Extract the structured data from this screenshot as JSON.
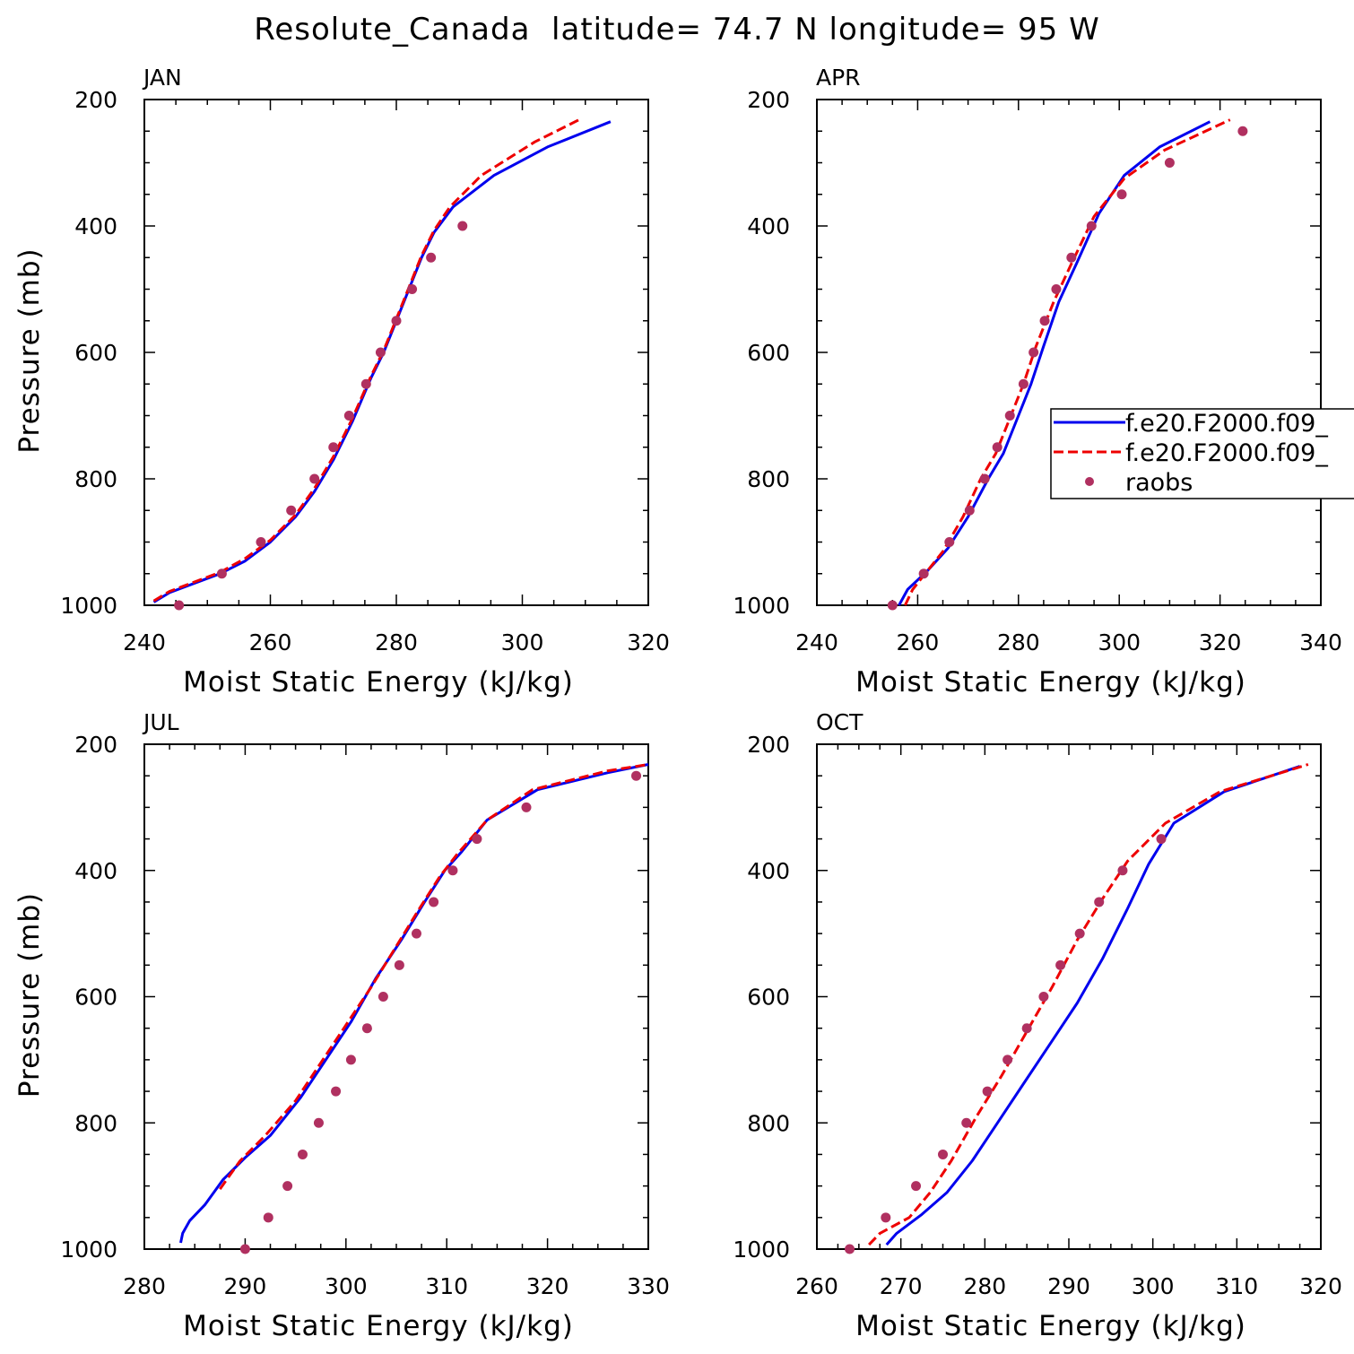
{
  "figure_title": "Resolute_Canada  latitude= 74.7 N longitude= 95 W",
  "colors": {
    "series1": "#0000ee",
    "series2": "#ee0000",
    "raobs": "#b03060"
  },
  "legend": {
    "entries": [
      "f.e20.F2000.f09_",
      "f.e20.F2000.f09_",
      "raobs"
    ]
  },
  "chart_data": [
    {
      "type": "line",
      "title": "JAN",
      "xlabel": "Moist Static Energy (kJ/kg)",
      "ylabel": "Pressure (mb)",
      "xlim": [
        240,
        320
      ],
      "ylim": [
        1000,
        200
      ],
      "xticks": [
        240,
        260,
        280,
        300,
        320
      ],
      "yticks": [
        200,
        400,
        600,
        800,
        1000
      ],
      "series": [
        {
          "name": "f.e20.F2000.f09_",
          "style": "solid",
          "x": [
            241.5,
            244,
            248,
            252,
            256,
            260,
            264,
            267,
            270,
            273,
            276,
            278,
            280,
            282,
            284,
            286,
            289,
            295.5,
            304,
            314
          ],
          "y": [
            995,
            980,
            965,
            950,
            930,
            900,
            860,
            820,
            770,
            710,
            640,
            600,
            550,
            500,
            450,
            410,
            370,
            320,
            275,
            235
          ]
        },
        {
          "name": "f.e20.F2000.f09_",
          "style": "dashed",
          "x": [
            241.5,
            244,
            248,
            252,
            256,
            260,
            264,
            267,
            270,
            273,
            276,
            278,
            280,
            282,
            284,
            286,
            288.5,
            293.5,
            302,
            309
          ],
          "y": [
            993,
            978,
            963,
            948,
            926,
            897,
            857,
            815,
            765,
            705,
            637,
            597,
            547,
            497,
            447,
            407,
            370,
            320,
            267,
            232
          ]
        },
        {
          "name": "raobs",
          "style": "markers",
          "x": [
            245.5,
            252.3,
            258.5,
            263.3,
            267,
            270,
            272.5,
            275.2,
            277.5,
            280,
            282.5,
            285.5,
            290.5
          ],
          "y": [
            1000,
            950,
            900,
            850,
            800,
            750,
            700,
            650,
            600,
            550,
            500,
            450,
            400
          ]
        }
      ]
    },
    {
      "type": "line",
      "title": "APR",
      "xlabel": "Moist Static Energy (kJ/kg)",
      "ylabel": "",
      "xlim": [
        240,
        340
      ],
      "ylim": [
        1000,
        200
      ],
      "xticks": [
        240,
        260,
        280,
        300,
        320,
        340
      ],
      "yticks": [
        200,
        400,
        600,
        800,
        1000
      ],
      "series": [
        {
          "name": "f.e20.F2000.f09_",
          "style": "solid",
          "x": [
            256.3,
            258,
            262,
            266,
            270,
            274,
            277,
            280,
            282.5,
            285,
            288,
            291.5,
            296,
            301,
            308,
            318
          ],
          "y": [
            1000,
            975,
            945,
            910,
            860,
            800,
            760,
            700,
            650,
            590,
            520,
            460,
            380,
            320,
            275,
            235
          ]
        },
        {
          "name": "f.e20.F2000.f09_",
          "style": "dashed",
          "x": [
            257.5,
            259,
            262,
            265,
            269,
            272.5,
            275.5,
            278.5,
            281,
            283.5,
            287,
            290.5,
            295,
            301,
            309,
            322
          ],
          "y": [
            1000,
            975,
            945,
            915,
            860,
            800,
            760,
            700,
            650,
            590,
            520,
            460,
            385,
            325,
            280,
            232
          ]
        },
        {
          "name": "raobs",
          "style": "markers",
          "x": [
            255,
            261.2,
            266.3,
            270.3,
            273.3,
            275.8,
            278.3,
            281,
            283,
            285.2,
            287.5,
            290.5,
            294.5,
            300.5,
            310,
            324.5
          ],
          "y": [
            1000,
            950,
            900,
            850,
            800,
            750,
            700,
            650,
            600,
            550,
            500,
            450,
            400,
            350,
            300,
            250
          ]
        }
      ]
    },
    {
      "type": "line",
      "title": "JUL",
      "xlabel": "Moist Static Energy (kJ/kg)",
      "ylabel": "Pressure (mb)",
      "xlim": [
        280,
        330
      ],
      "ylim": [
        1000,
        200
      ],
      "xticks": [
        280,
        290,
        300,
        310,
        320,
        330
      ],
      "yticks": [
        200,
        400,
        600,
        800,
        1000
      ],
      "series": [
        {
          "name": "f.e20.F2000.f09_",
          "style": "solid",
          "x": [
            283.6,
            283.8,
            284.5,
            286,
            287.8,
            290,
            292.5,
            295.5,
            298,
            300.5,
            303,
            305.5,
            307.8,
            309.8,
            311.5,
            314,
            319,
            326,
            330
          ],
          "y": [
            990,
            975,
            955,
            930,
            890,
            855,
            820,
            760,
            700,
            640,
            570,
            510,
            450,
            400,
            370,
            320,
            272,
            245,
            232
          ]
        },
        {
          "name": "f.e20.F2000.f09_",
          "style": "dashed",
          "x": [
            287.5,
            289.5,
            292,
            295,
            297.5,
            300,
            302.5,
            305,
            307.3,
            309.3,
            311,
            314,
            318.5,
            326,
            330
          ],
          "y": [
            905,
            860,
            820,
            765,
            705,
            645,
            585,
            520,
            460,
            410,
            375,
            320,
            272,
            242,
            232
          ]
        },
        {
          "name": "raobs",
          "style": "markers",
          "x": [
            290,
            292.3,
            294.2,
            295.7,
            297.3,
            299,
            300.5,
            302.1,
            303.7,
            305.3,
            307,
            308.7,
            310.6,
            313,
            317.9,
            328.8
          ],
          "y": [
            1000,
            950,
            900,
            850,
            800,
            750,
            700,
            650,
            600,
            550,
            500,
            450,
            400,
            350,
            300,
            250
          ]
        }
      ]
    },
    {
      "type": "line",
      "title": "OCT",
      "xlabel": "Moist Static Energy (kJ/kg)",
      "ylabel": "",
      "xlim": [
        260,
        320
      ],
      "ylim": [
        1000,
        200
      ],
      "xticks": [
        260,
        270,
        280,
        290,
        300,
        310,
        320
      ],
      "yticks": [
        200,
        400,
        600,
        800,
        1000
      ],
      "series": [
        {
          "name": "f.e20.F2000.f09_",
          "style": "solid",
          "x": [
            268.3,
            269.5,
            272.5,
            275.5,
            278.5,
            281.5,
            284.5,
            288,
            291,
            294,
            297,
            299.5,
            302.5,
            308.5,
            317.5
          ],
          "y": [
            993,
            975,
            945,
            910,
            860,
            800,
            740,
            670,
            610,
            540,
            460,
            390,
            325,
            275,
            235
          ]
        },
        {
          "name": "f.e20.F2000.f09_",
          "style": "dashed",
          "x": [
            266.2,
            267.5,
            271,
            273.5,
            276,
            279,
            282,
            285,
            288,
            291,
            294,
            297,
            301.5,
            308,
            318.5
          ],
          "y": [
            993,
            975,
            950,
            910,
            860,
            790,
            725,
            655,
            585,
            510,
            445,
            385,
            325,
            275,
            232
          ]
        },
        {
          "name": "raobs",
          "style": "markers",
          "x": [
            263.9,
            268.2,
            271.8,
            275,
            277.8,
            280.3,
            282.7,
            285,
            287,
            289,
            291.3,
            293.6,
            296.4,
            301
          ],
          "y": [
            1000,
            950,
            900,
            850,
            800,
            750,
            700,
            650,
            600,
            550,
            500,
            450,
            400,
            350
          ]
        }
      ]
    }
  ]
}
